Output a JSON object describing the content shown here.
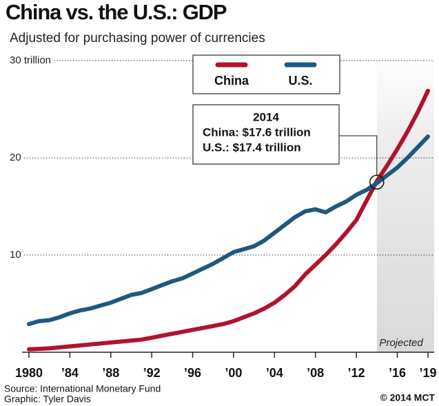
{
  "chart_data": {
    "type": "line",
    "title": "China vs. the U.S.: GDP",
    "subtitle": "Adjusted for purchasing power of currencies",
    "x": [
      1980,
      1981,
      1982,
      1983,
      1984,
      1985,
      1986,
      1987,
      1988,
      1989,
      1990,
      1991,
      1992,
      1993,
      1994,
      1995,
      1996,
      1997,
      1998,
      1999,
      2000,
      2001,
      2002,
      2003,
      2004,
      2005,
      2006,
      2007,
      2008,
      2009,
      2010,
      2011,
      2012,
      2013,
      2014,
      2015,
      2016,
      2017,
      2018,
      2019
    ],
    "series": [
      {
        "name": "China",
        "color": "#b01230",
        "values": [
          0.3,
          0.35,
          0.4,
          0.5,
          0.6,
          0.7,
          0.8,
          0.9,
          1.0,
          1.1,
          1.2,
          1.3,
          1.5,
          1.7,
          1.9,
          2.1,
          2.3,
          2.5,
          2.7,
          2.9,
          3.2,
          3.6,
          4.0,
          4.5,
          5.1,
          5.9,
          6.8,
          8.0,
          9.0,
          10.0,
          11.1,
          12.3,
          13.6,
          15.6,
          17.6,
          19.2,
          20.9,
          22.7,
          24.7,
          26.9
        ]
      },
      {
        "name": "U.S.",
        "color": "#1d5a7d",
        "values": [
          2.9,
          3.2,
          3.3,
          3.6,
          4.0,
          4.3,
          4.5,
          4.8,
          5.1,
          5.5,
          5.9,
          6.1,
          6.5,
          6.9,
          7.3,
          7.6,
          8.1,
          8.6,
          9.1,
          9.7,
          10.3,
          10.6,
          10.9,
          11.5,
          12.3,
          13.1,
          13.9,
          14.5,
          14.7,
          14.4,
          15.0,
          15.5,
          16.2,
          16.7,
          17.4,
          18.2,
          19.0,
          20.0,
          21.1,
          22.2
        ]
      }
    ],
    "xlim": [
      1980,
      2019
    ],
    "xticks": [
      {
        "value": 1980,
        "label": "1980"
      },
      {
        "value": 1984,
        "label": "’84"
      },
      {
        "value": 1988,
        "label": "’88"
      },
      {
        "value": 1992,
        "label": "’92"
      },
      {
        "value": 1996,
        "label": "’96"
      },
      {
        "value": 2000,
        "label": "’00"
      },
      {
        "value": 2004,
        "label": "’04"
      },
      {
        "value": 2008,
        "label": "’08"
      },
      {
        "value": 2012,
        "label": "’12"
      },
      {
        "value": 2016,
        "label": "’16"
      },
      {
        "value": 2019,
        "label": "’19"
      }
    ],
    "ylim": [
      0,
      30
    ],
    "yticks": [
      10,
      20,
      {
        "value": 30,
        "label": "30 trillion"
      }
    ],
    "grid": true,
    "legend": "top",
    "projected": {
      "label": "Projected",
      "from": 2014
    },
    "annotation": {
      "title": "2014",
      "lines": [
        "China: $17.6 trillion",
        "U.S.: $17.4 trillion"
      ]
    },
    "source": "Source: International Monetary Fund",
    "credit": "Graphic: Tyler Davis",
    "copyright": "© 2014 MCT"
  }
}
